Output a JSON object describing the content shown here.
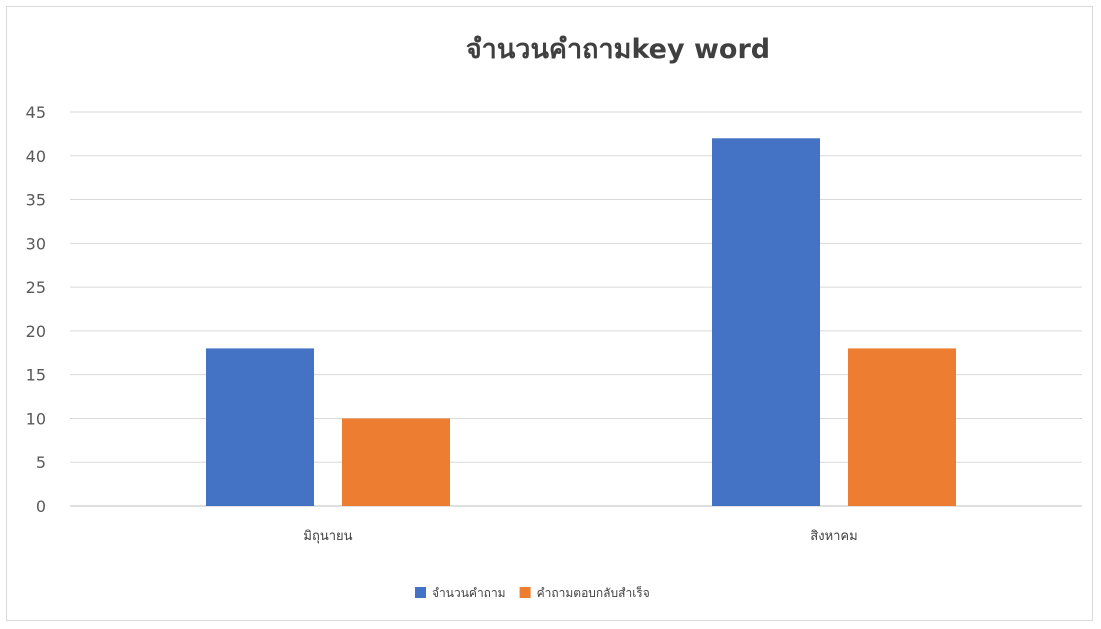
{
  "chart_data": {
    "type": "bar",
    "title": "จำนวนคำถามkey word",
    "categories": [
      "มิถุนายน",
      "สิงหาคม"
    ],
    "series": [
      {
        "name": "จำนวนคำถาม",
        "color": "#4472C4",
        "values": [
          18,
          42
        ]
      },
      {
        "name": "คำถามตอบกลับสำเร็จ",
        "color": "#ED7D31",
        "values": [
          10,
          18
        ]
      }
    ],
    "ylim": [
      0,
      45
    ],
    "yticks": [
      0,
      5,
      10,
      15,
      20,
      25,
      30,
      35,
      40,
      45
    ],
    "grid": true,
    "legend": "bottom"
  }
}
